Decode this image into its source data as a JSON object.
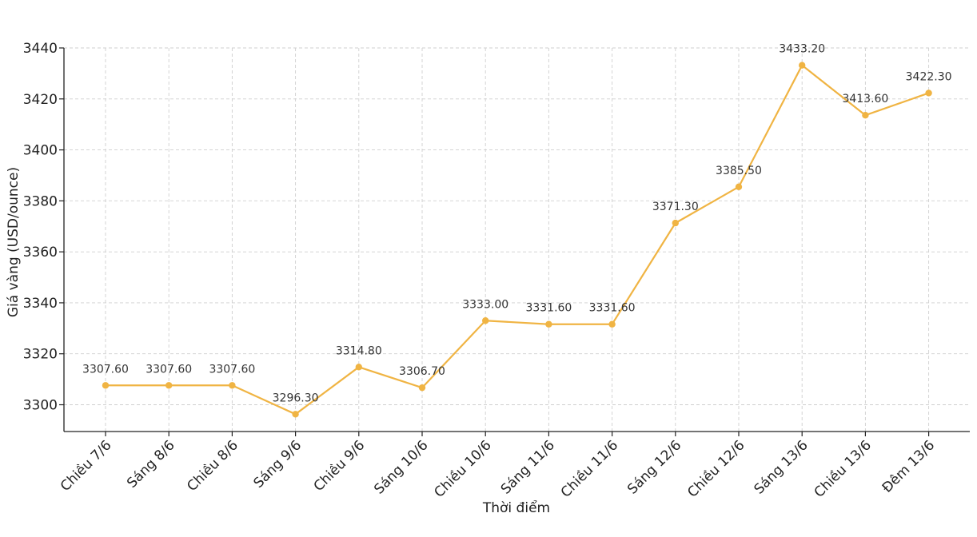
{
  "chart_data": {
    "type": "line",
    "title": "",
    "xlabel": "Thời điểm",
    "ylabel": "Giá vàng (USD/ounce)",
    "categories": [
      "Chiều 7/6",
      "Sáng 8/6",
      "Chiều 8/6",
      "Sáng 9/6",
      "Chiều 9/6",
      "Sáng 10/6",
      "Chiều 10/6",
      "Sáng 11/6",
      "Chiều 11/6",
      "Sáng 12/6",
      "Chiều 12/6",
      "Sáng 13/6",
      "Chiều 13/6",
      "Đêm 13/6"
    ],
    "series": [
      {
        "values": [
          3307.6,
          3307.6,
          3307.6,
          3296.3,
          3314.8,
          3306.7,
          3333.0,
          3331.6,
          3331.6,
          3371.3,
          3385.5,
          3433.2,
          3413.6,
          3422.3
        ],
        "data_labels": [
          "3307.60",
          "3307.60",
          "3307.60",
          "3296.30",
          "3314.80",
          "3306.70",
          "3333.00",
          "3331.60",
          "3331.60",
          "3371.30",
          "3385.50",
          "3433.20",
          "3413.60",
          "3422.30"
        ],
        "color": "#f0b443"
      }
    ],
    "yticks": [
      "3300",
      "3320",
      "3340",
      "3360",
      "3380",
      "3400",
      "3420",
      "3440"
    ],
    "ylim": [
      3289.5,
      3440
    ],
    "grid": true,
    "legend": "none"
  }
}
